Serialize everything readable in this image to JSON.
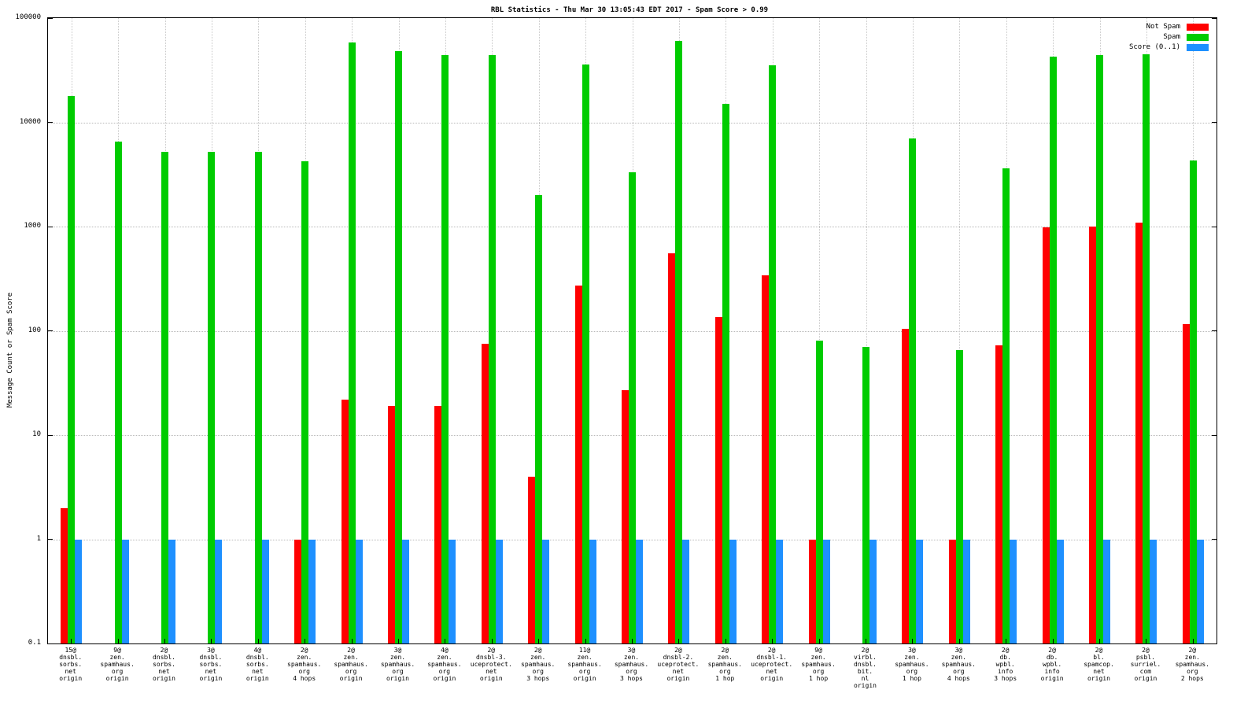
{
  "chart_data": {
    "type": "bar",
    "title": "RBL Statistics - Thu Mar 30 13:05:43 EDT 2017 - Spam Score > 0.99",
    "ylabel": "Message Count or Spam Score",
    "yscale": "log",
    "ylim": [
      0.1,
      100000
    ],
    "yticks": [
      100000,
      10000,
      1000,
      100,
      10,
      1,
      0.1
    ],
    "ytick_labels": [
      "100000",
      "10000",
      "1000",
      "100",
      "10",
      "1",
      "0.1"
    ],
    "grid": true,
    "legend_position": "top-right",
    "categories": [
      [
        "15@",
        "dnsbl.",
        "sorbs.",
        "net",
        "origin"
      ],
      [
        "9@",
        "zen.",
        "spamhaus.",
        "org",
        "origin"
      ],
      [
        "2@",
        "dnsbl.",
        "sorbs.",
        "net",
        "origin"
      ],
      [
        "3@",
        "dnsbl.",
        "sorbs.",
        "net",
        "origin"
      ],
      [
        "4@",
        "dnsbl.",
        "sorbs.",
        "net",
        "origin"
      ],
      [
        "2@",
        "zen.",
        "spamhaus.",
        "org",
        "4 hops"
      ],
      [
        "2@",
        "zen.",
        "spamhaus.",
        "org",
        "origin"
      ],
      [
        "3@",
        "zen.",
        "spamhaus.",
        "org",
        "origin"
      ],
      [
        "4@",
        "zen.",
        "spamhaus.",
        "org",
        "origin"
      ],
      [
        "2@",
        "dnsbl-3.",
        "uceprotect.",
        "net",
        "origin"
      ],
      [
        "2@",
        "zen.",
        "spamhaus.",
        "org",
        "3 hops"
      ],
      [
        "11@",
        "zen.",
        "spamhaus.",
        "org",
        "origin"
      ],
      [
        "3@",
        "zen.",
        "spamhaus.",
        "org",
        "3 hops"
      ],
      [
        "2@",
        "dnsbl-2.",
        "uceprotect.",
        "net",
        "origin"
      ],
      [
        "2@",
        "zen.",
        "spamhaus.",
        "org",
        "1 hop"
      ],
      [
        "2@",
        "dnsbl-1.",
        "uceprotect.",
        "net",
        "origin"
      ],
      [
        "9@",
        "zen.",
        "spamhaus.",
        "org",
        "1 hop"
      ],
      [
        "2@",
        "virbl.",
        "dnsbl.",
        "bit.",
        "nl",
        "origin"
      ],
      [
        "3@",
        "zen.",
        "spamhaus.",
        "org",
        "1 hop"
      ],
      [
        "3@",
        "zen.",
        "spamhaus.",
        "org",
        "4 hops"
      ],
      [
        "2@",
        "db.",
        "wpbl.",
        "info",
        "3 hops"
      ],
      [
        "2@",
        "db.",
        "wpbl.",
        "info",
        "origin"
      ],
      [
        "2@",
        "bl.",
        "spamcop.",
        "net",
        "origin"
      ],
      [
        "2@",
        "psbl.",
        "surriel.",
        "com",
        "origin"
      ],
      [
        "2@",
        "zen.",
        "spamhaus.",
        "org",
        "2 hops"
      ]
    ],
    "series": [
      {
        "name": "Not Spam",
        "color": "#ff0000",
        "values": [
          2,
          null,
          null,
          null,
          null,
          1,
          22,
          19,
          19,
          75,
          4,
          270,
          27,
          550,
          135,
          340,
          1,
          null,
          105,
          1,
          72,
          980,
          1000,
          1100,
          115
        ]
      },
      {
        "name": "Spam",
        "color": "#00cc00",
        "values": [
          18000,
          6500,
          5200,
          5200,
          5200,
          4200,
          58000,
          48000,
          44000,
          44000,
          2000,
          36000,
          3300,
          60000,
          15000,
          35000,
          80,
          70,
          7000,
          65,
          3600,
          43000,
          44000,
          45000,
          4300
        ]
      },
      {
        "name": "Score (0..1)",
        "color": "#1e90ff",
        "values": [
          1,
          1,
          1,
          1,
          1,
          1,
          1,
          1,
          1,
          1,
          1,
          1,
          1,
          1,
          1,
          1,
          1,
          1,
          1,
          1,
          1,
          1,
          1,
          1,
          1
        ]
      }
    ]
  }
}
